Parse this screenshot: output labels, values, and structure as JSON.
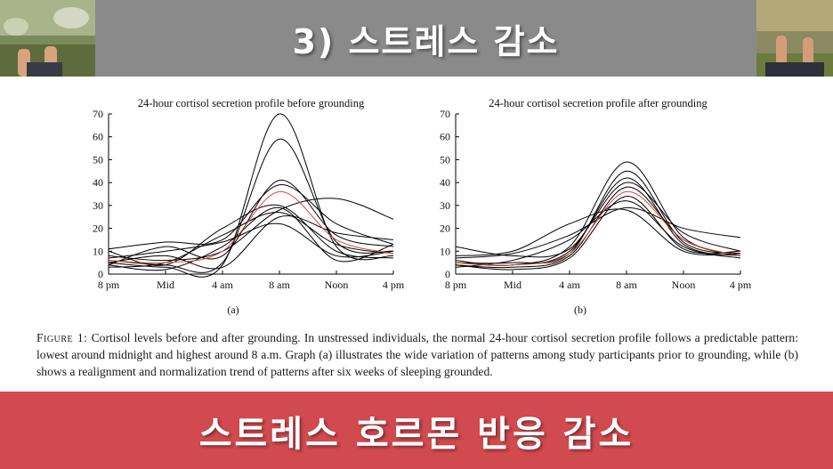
{
  "slide": {
    "title": "3) 스트레스 감소",
    "bottom_banner": "스트레스 호르몬 반응 감소"
  },
  "caption": {
    "figure_label": "Figure 1:",
    "text": " Cortisol levels before and after grounding. In unstressed individuals, the normal 24-hour cortisol secretion profile follows a predictable pattern: lowest around midnight and highest around 8 a.m. Graph (a) illustrates the wide variation of patterns among study participants prior to grounding, while (b) shows a realignment and normalization trend of patterns after six weeks of sleeping grounded."
  },
  "colors": {
    "title_band": "#8a8a8a",
    "bottom_band": "#d04a4f",
    "series_line": "#000000",
    "highlight_line": "#e0463c"
  },
  "chart_data": [
    {
      "type": "line",
      "title": "24-hour cortisol secretion profile before grounding",
      "panel_label": "(a)",
      "x": [
        "8 pm",
        "Mid",
        "4 am",
        "8 am",
        "Noon",
        "4 pm"
      ],
      "yticks": [
        0,
        10,
        20,
        30,
        40,
        50,
        60,
        70
      ],
      "ylim": [
        0,
        70
      ],
      "grid": false,
      "series": [
        {
          "values": [
            5,
            3,
            4,
            70,
            12,
            8
          ]
        },
        {
          "values": [
            6,
            4,
            5,
            59,
            14,
            10
          ]
        },
        {
          "values": [
            4,
            12,
            8,
            41,
            17,
            12
          ]
        },
        {
          "values": [
            11,
            14,
            15,
            39,
            22,
            13
          ]
        },
        {
          "values": [
            8,
            6,
            10,
            28,
            33,
            24
          ]
        },
        {
          "values": [
            3,
            5,
            17,
            27,
            13,
            9
          ]
        },
        {
          "values": [
            10,
            4,
            20,
            30,
            10,
            7
          ]
        },
        {
          "values": [
            5,
            8,
            3,
            25,
            18,
            15
          ]
        },
        {
          "values": [
            7,
            10,
            14,
            22,
            8,
            10
          ]
        },
        {
          "values": [
            4,
            2,
            12,
            29,
            6,
            13
          ]
        },
        {
          "highlight": true,
          "values": [
            6,
            5,
            10,
            36,
            15,
            9
          ]
        }
      ]
    },
    {
      "type": "line",
      "title": "24-hour cortisol secretion profile after grounding",
      "panel_label": "(b)",
      "x": [
        "8 pm",
        "Mid",
        "4 am",
        "8 am",
        "Noon",
        "4 pm"
      ],
      "yticks": [
        0,
        10,
        20,
        30,
        40,
        50,
        60,
        70
      ],
      "ylim": [
        0,
        70
      ],
      "grid": false,
      "series": [
        {
          "values": [
            6,
            4,
            12,
            49,
            16,
            8
          ]
        },
        {
          "values": [
            5,
            5,
            9,
            45,
            14,
            9
          ]
        },
        {
          "values": [
            12,
            8,
            11,
            40,
            18,
            10
          ]
        },
        {
          "values": [
            4,
            3,
            8,
            38,
            15,
            8
          ]
        },
        {
          "values": [
            7,
            9,
            17,
            29,
            20,
            16
          ]
        },
        {
          "values": [
            3,
            6,
            15,
            32,
            12,
            7
          ]
        },
        {
          "values": [
            8,
            10,
            22,
            28,
            10,
            9
          ]
        },
        {
          "values": [
            5,
            4,
            10,
            42,
            13,
            8
          ]
        },
        {
          "values": [
            4,
            2,
            7,
            34,
            11,
            10
          ]
        },
        {
          "highlight": true,
          "values": [
            5,
            4,
            9,
            36,
            15,
            8
          ]
        }
      ]
    }
  ]
}
